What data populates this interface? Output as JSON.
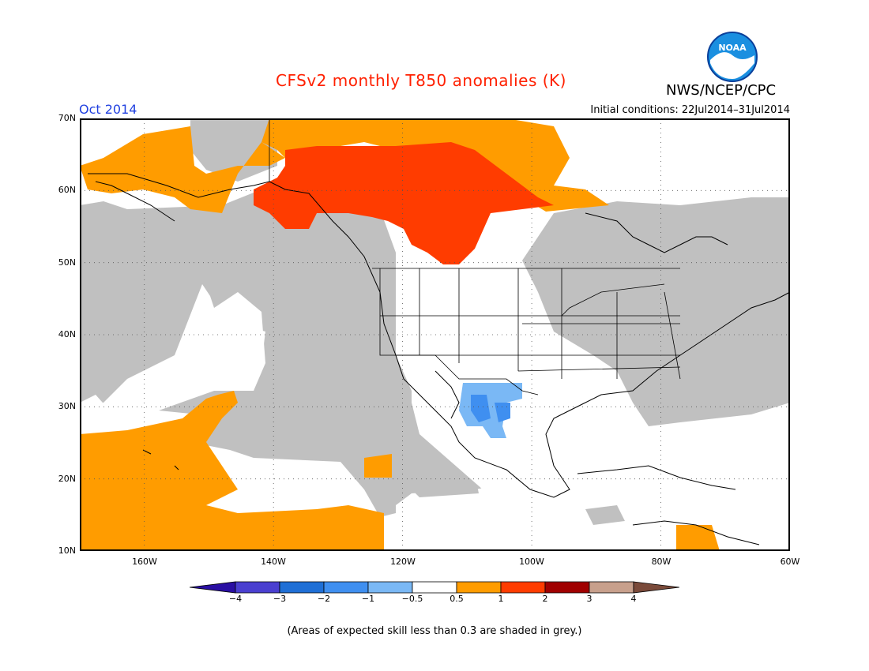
{
  "title": "CFSv2 monthly T850 anomalies (K)",
  "period": "Oct 2014",
  "initial_conditions": "Initial conditions: 22Jul2014–31Jul2014",
  "agency": "NWS/NCEP/CPC",
  "logo": {
    "text": "NOAA",
    "icon": "noaa-logo"
  },
  "lat_labels": [
    "70N",
    "60N",
    "50N",
    "40N",
    "30N",
    "20N",
    "10N"
  ],
  "lon_labels": [
    "160W",
    "140W",
    "120W",
    "100W",
    "80W",
    "60W"
  ],
  "colorbar": {
    "colors": [
      "#2a0fa3",
      "#4a3fd0",
      "#1f6fd6",
      "#3f8ff0",
      "#7ab8f5",
      "#ffffff",
      "#ff9c00",
      "#ff3c00",
      "#a00000",
      "#c8a08c",
      "#7a4a3a"
    ],
    "labels": [
      "−4",
      "−3",
      "−2",
      "−1",
      "−0.5",
      "0.5",
      "1",
      "2",
      "3",
      "4"
    ]
  },
  "colors": {
    "grey": "#c0c0c0",
    "orange": "#ff9c00",
    "red": "#ff3c00",
    "lightblue": "#7ab8f5",
    "blue": "#3f8ff0"
  },
  "footer": "(Areas of expected skill less than 0.3 are shaded in grey.)"
}
